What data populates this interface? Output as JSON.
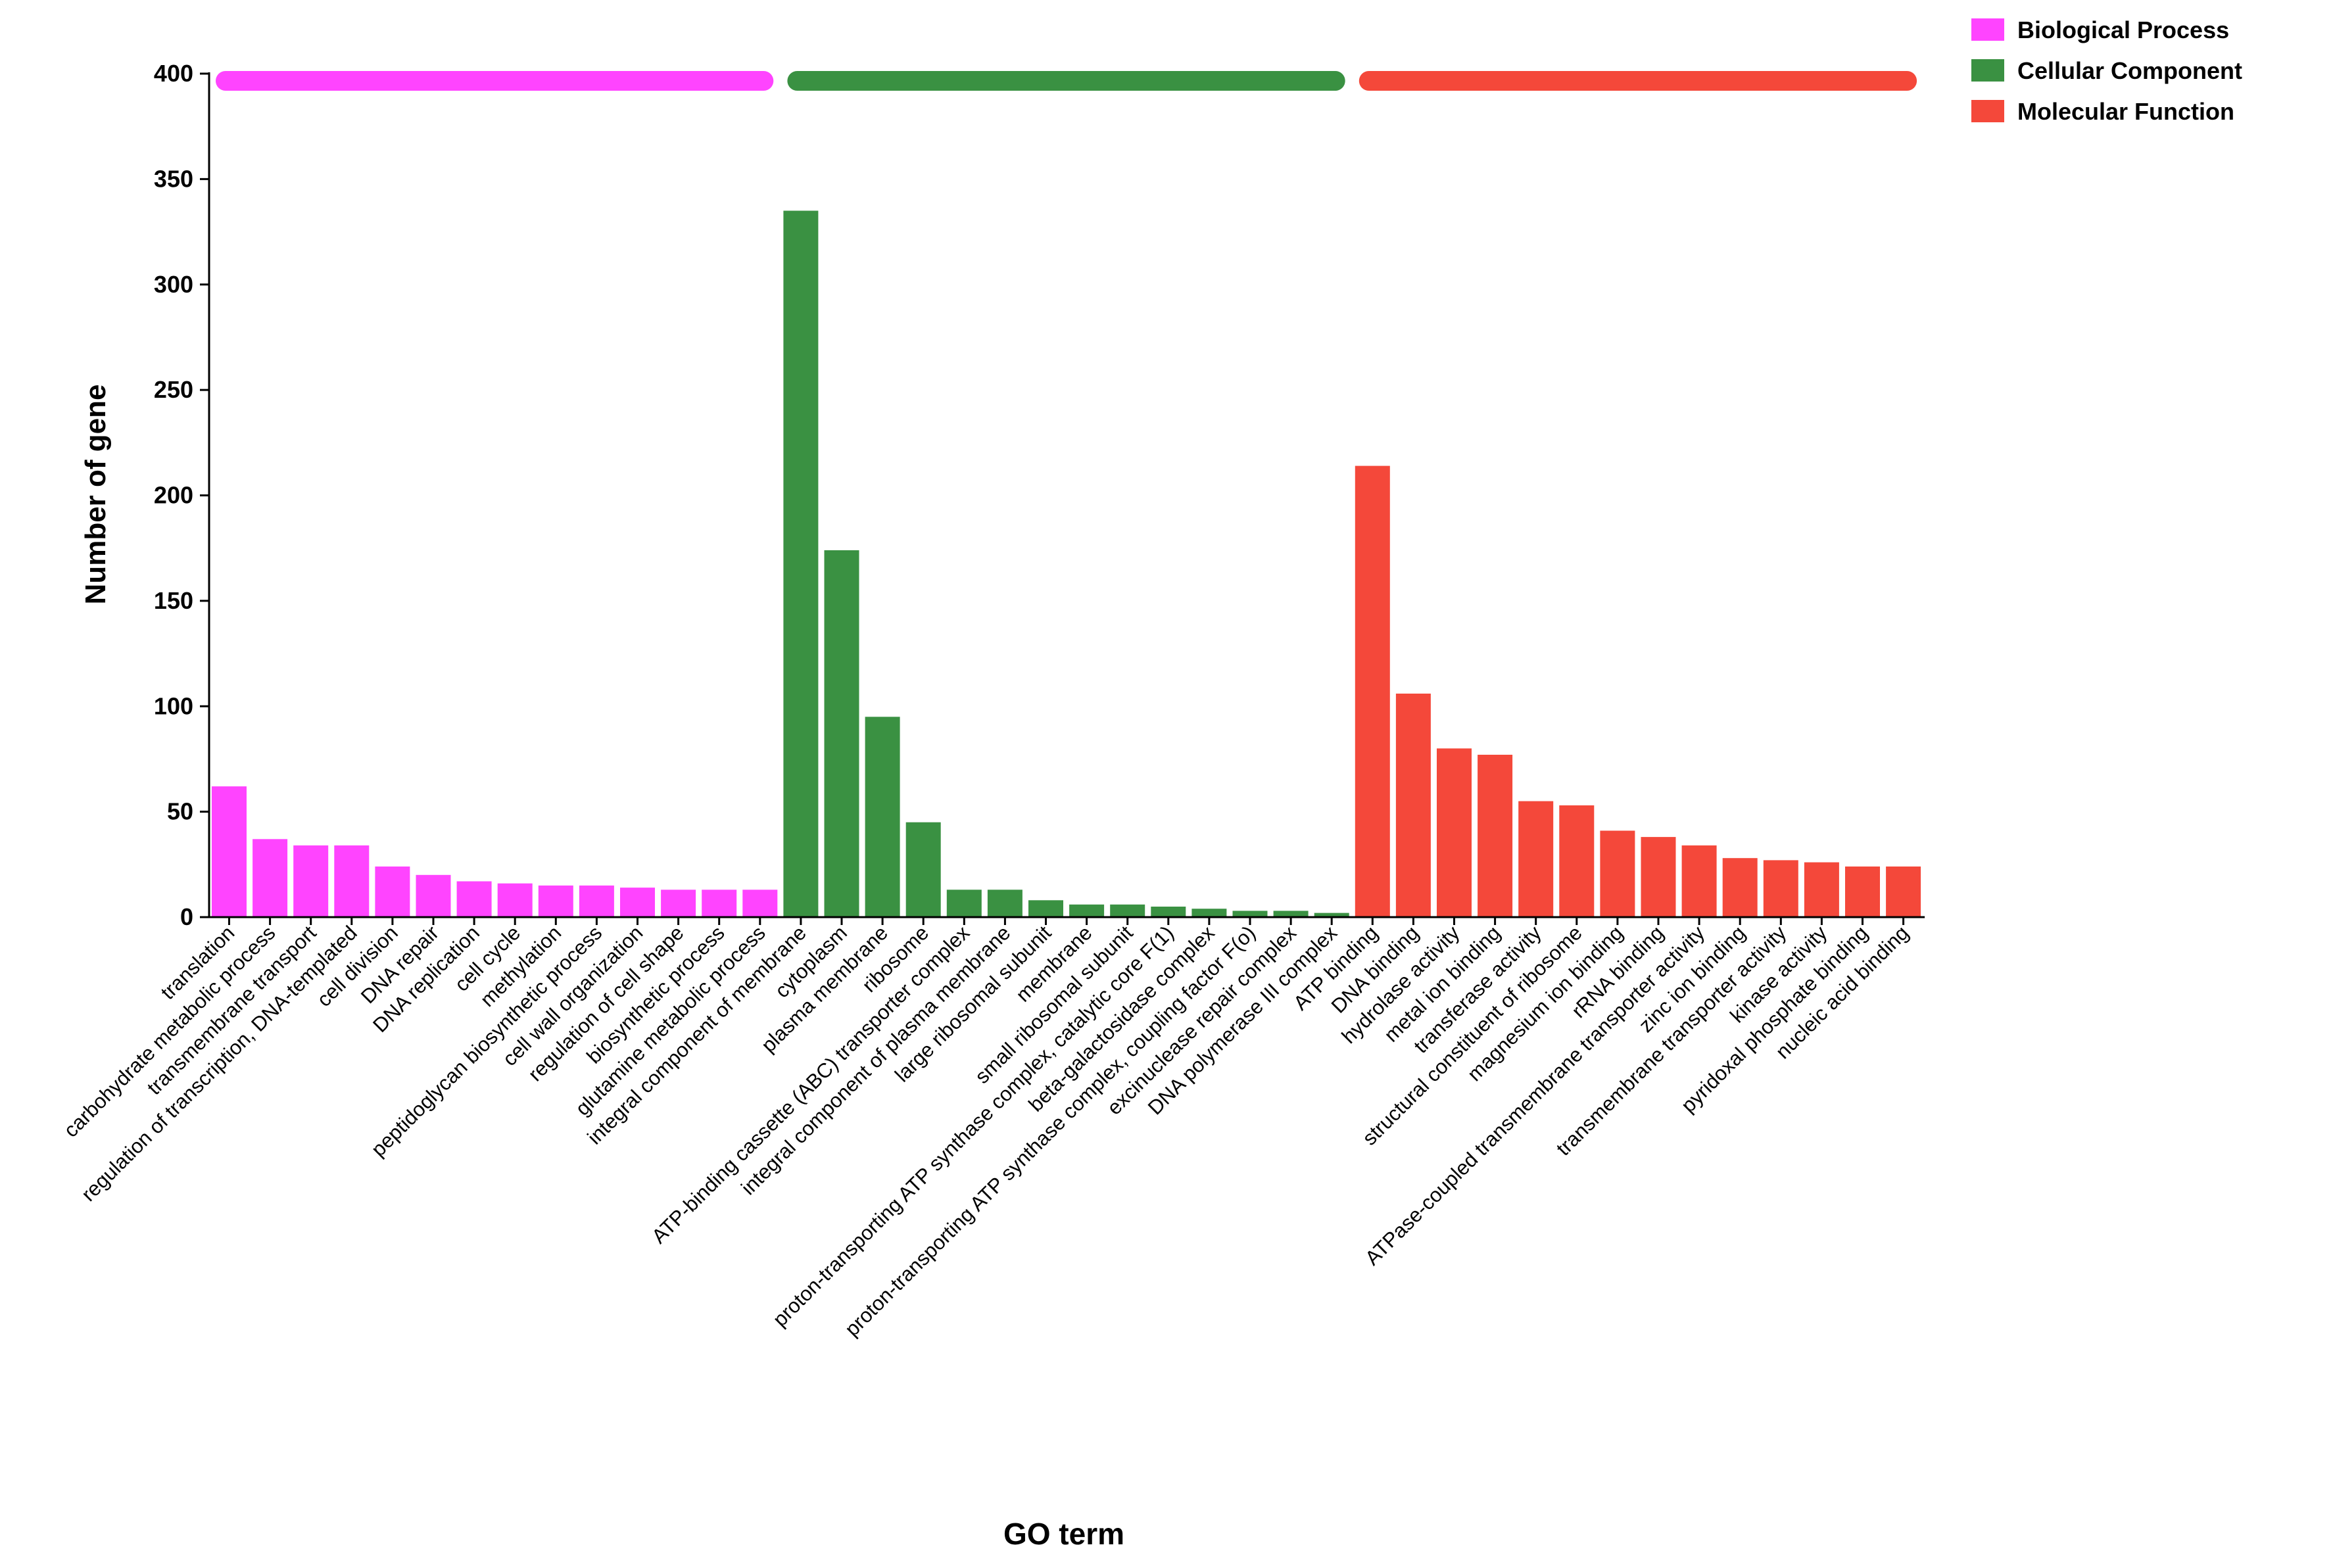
{
  "chart_data": {
    "type": "bar",
    "xlabel": "GO term",
    "ylabel": "Number of gene",
    "ylim": [
      0,
      400
    ],
    "yticks": [
      0,
      50,
      100,
      150,
      200,
      250,
      300,
      350,
      400
    ],
    "legend_position": "top-right",
    "groups": [
      {
        "name": "Biological Process",
        "color": "#ff44ff",
        "categories": [
          "translation",
          "carbohydrate metabolic process",
          "transmembrane transport",
          "regulation of transcription, DNA-templated",
          "cell division",
          "DNA repair",
          "DNA replication",
          "cell cycle",
          "methylation",
          "peptidoglycan biosynthetic process",
          "cell wall organization",
          "regulation of cell shape",
          "biosynthetic process",
          "glutamine metabolic process"
        ],
        "values": [
          62,
          37,
          34,
          34,
          24,
          20,
          17,
          16,
          15,
          15,
          14,
          13,
          13,
          13
        ]
      },
      {
        "name": "Cellular Component",
        "color": "#3a9142",
        "categories": [
          "integral component of membrane",
          "cytoplasm",
          "plasma membrane",
          "ribosome",
          "ATP-binding cassette (ABC) transporter complex",
          "integral component of plasma membrane",
          "large ribosomal subunit",
          "membrane",
          "small ribosomal subunit",
          "proton-transporting ATP synthase complex, catalytic core F(1)",
          "beta-galactosidase complex",
          "proton-transporting ATP synthase complex, coupling factor F(o)",
          "excinuclease repair complex",
          "DNA polymerase III complex"
        ],
        "values": [
          335,
          174,
          95,
          45,
          13,
          13,
          8,
          6,
          6,
          5,
          4,
          3,
          3,
          2
        ]
      },
      {
        "name": "Molecular Function",
        "color": "#f4483a",
        "categories": [
          "ATP binding",
          "DNA binding",
          "hydrolase activity",
          "metal ion binding",
          "transferase activity",
          "structural constituent of ribosome",
          "magnesium ion binding",
          "rRNA binding",
          "ATPase-coupled transmembrane transporter activity",
          "zinc ion binding",
          "transmembrane transporter activity",
          "kinase activity",
          "pyridoxal phosphate binding",
          "nucleic acid binding"
        ],
        "values": [
          214,
          106,
          80,
          77,
          55,
          53,
          41,
          38,
          34,
          28,
          27,
          26,
          24,
          24
        ]
      }
    ]
  }
}
